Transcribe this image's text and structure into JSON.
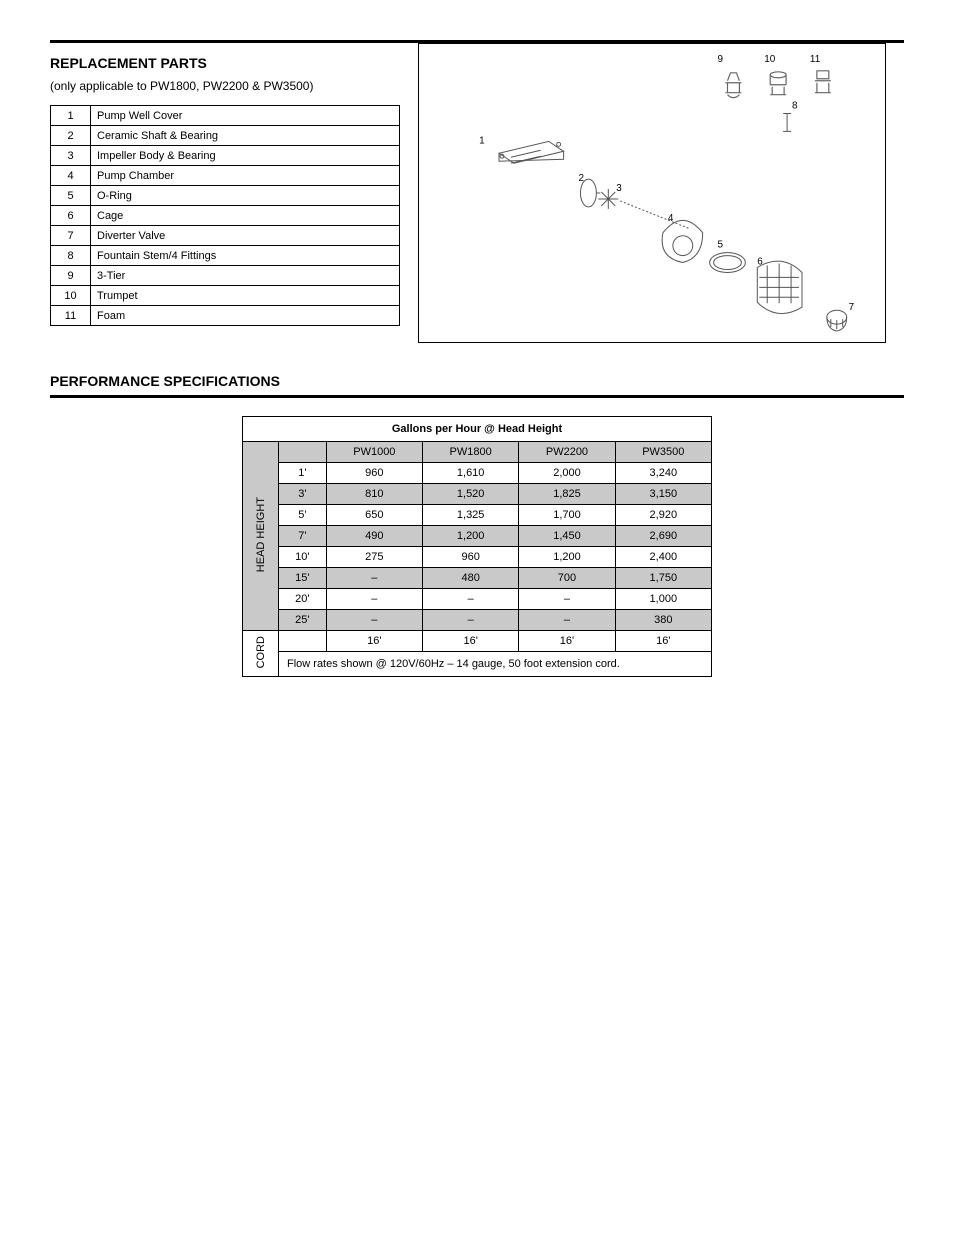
{
  "section1": {
    "title": "REPLACEMENT PARTS",
    "subtitle": "(only applicable to PW1800, PW2200 & PW3500)",
    "rows": [
      {
        "n": "1",
        "label": "Pump Well Cover"
      },
      {
        "n": "2",
        "label": "Ceramic Shaft & Bearing"
      },
      {
        "n": "3",
        "label": "Impeller Body & Bearing"
      },
      {
        "n": "4",
        "label": "Pump Chamber"
      },
      {
        "n": "5",
        "label": "O-Ring"
      },
      {
        "n": "6",
        "label": "Cage"
      },
      {
        "n": "7",
        "label": "Diverter Valve"
      },
      {
        "n": "8",
        "label": "Fountain Stem/4 Fittings"
      },
      {
        "n": "9",
        "label": "3-Tier"
      },
      {
        "n": "10",
        "label": "Trumpet"
      },
      {
        "n": "11",
        "label": "Foam"
      }
    ]
  },
  "diagram": {
    "labels": {
      "l9": "9",
      "l10": "10",
      "l11": "11",
      "l8": "8",
      "l1": "1",
      "l2": "2",
      "l3": "3",
      "l4": "4",
      "l5": "5",
      "l6": "6",
      "l7": "7"
    }
  },
  "section2": {
    "title": "PERFORMANCE SPECIFICATIONS",
    "tableTitle": "Gallons per Hour @ Head Height",
    "vhead1": "HEAD HEIGHT",
    "vhead2": "CORD",
    "cols": [
      "",
      "PW1000",
      "PW1800",
      "PW2200",
      "PW3500"
    ],
    "rows": [
      [
        "1'",
        "960",
        "1,610",
        "2,000",
        "3,240"
      ],
      [
        "3'",
        "810",
        "1,520",
        "1,825",
        "3,150"
      ],
      [
        "5'",
        "650",
        "1,325",
        "1,700",
        "2,920"
      ],
      [
        "7'",
        "490",
        "1,200",
        "1,450",
        "2,690"
      ],
      [
        "10'",
        "275",
        "960",
        "1,200",
        "2,400"
      ],
      [
        "15'",
        "–",
        "480",
        "700",
        "1,750"
      ],
      [
        "20'",
        "–",
        "–",
        "–",
        "1,000"
      ],
      [
        "25'",
        "–",
        "–",
        "–",
        "380"
      ]
    ],
    "cordRow": [
      "",
      "16'",
      "16'",
      "16'",
      "16'"
    ],
    "notes": "Flow rates shown @ 120V/60Hz – 14 gauge, 50 foot extension cord."
  }
}
